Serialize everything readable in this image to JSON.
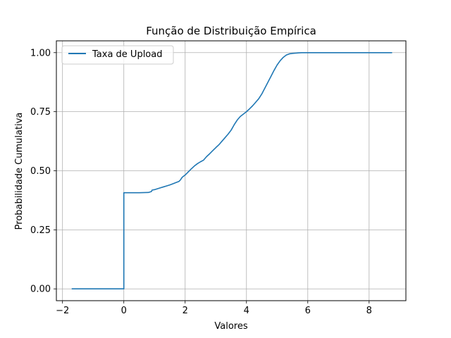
{
  "chart_data": {
    "type": "line",
    "title": "Função de Distribuição Empírica",
    "xlabel": "Valores",
    "ylabel": "Probabilidade Cumulativa",
    "xlim": [
      -2.2,
      9.2
    ],
    "ylim": [
      -0.05,
      1.05
    ],
    "xticks": [
      -2,
      0,
      2,
      4,
      6,
      8
    ],
    "xtick_labels": [
      "−2",
      "0",
      "2",
      "4",
      "6",
      "8"
    ],
    "yticks": [
      0,
      0.25,
      0.5,
      0.75,
      1.0
    ],
    "ytick_labels": [
      "0.00",
      "0.25",
      "0.50",
      "0.75",
      "1.00"
    ],
    "grid": true,
    "legend_position": "upper-left",
    "series": [
      {
        "name": "Taxa de Upload",
        "color": "#1f77b4",
        "x": [
          -1.7,
          -0.02,
          0.0,
          0.0,
          0.2,
          0.5,
          0.8,
          0.9,
          0.92,
          1.0,
          1.1,
          1.2,
          1.3,
          1.4,
          1.5,
          1.6,
          1.7,
          1.8,
          1.85,
          1.9,
          2.0,
          2.1,
          2.2,
          2.3,
          2.4,
          2.5,
          2.6,
          2.7,
          2.8,
          2.9,
          3.0,
          3.1,
          3.2,
          3.3,
          3.4,
          3.5,
          3.6,
          3.7,
          3.8,
          3.9,
          4.0,
          4.1,
          4.2,
          4.3,
          4.4,
          4.5,
          4.6,
          4.7,
          4.8,
          4.9,
          5.0,
          5.1,
          5.2,
          5.3,
          5.4,
          5.5,
          5.6,
          5.7,
          5.8,
          5.9,
          6.0,
          6.5,
          7.0,
          8.0,
          8.75
        ],
        "y": [
          0.0,
          0.0,
          0.0,
          0.407,
          0.407,
          0.407,
          0.408,
          0.412,
          0.418,
          0.42,
          0.424,
          0.428,
          0.432,
          0.436,
          0.44,
          0.445,
          0.45,
          0.455,
          0.462,
          0.472,
          0.482,
          0.495,
          0.508,
          0.52,
          0.53,
          0.538,
          0.545,
          0.56,
          0.572,
          0.585,
          0.598,
          0.61,
          0.625,
          0.64,
          0.655,
          0.672,
          0.695,
          0.715,
          0.73,
          0.74,
          0.75,
          0.762,
          0.775,
          0.79,
          0.805,
          0.825,
          0.85,
          0.875,
          0.9,
          0.925,
          0.948,
          0.966,
          0.98,
          0.99,
          0.995,
          0.997,
          0.998,
          0.999,
          1.0,
          1.0,
          1.0,
          1.0,
          1.0,
          1.0,
          1.0
        ]
      }
    ]
  }
}
